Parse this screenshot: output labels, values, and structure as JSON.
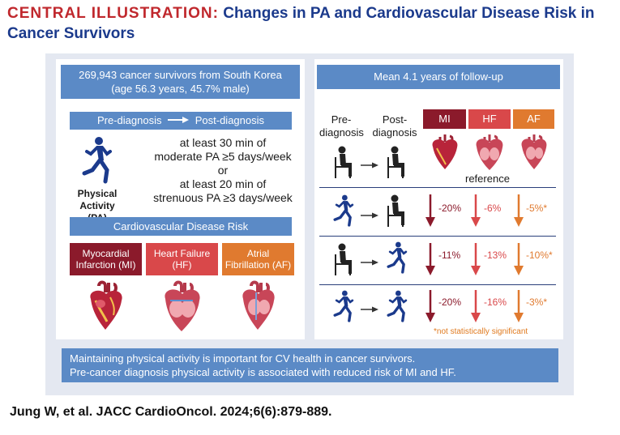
{
  "header": {
    "label": "CENTRAL ILLUSTRATION:",
    "title_line1": "Changes in PA and Cardiovascular Disease Risk in",
    "title_line2": "Cancer Survivors"
  },
  "left": {
    "cohort_line1": "269,943 cancer survivors from South Korea",
    "cohort_line2": "(age 56.3 years, 45.7% male)",
    "timeline_pre": "Pre-diagnosis",
    "timeline_post": "Post-diagnosis",
    "criteria": [
      "at least 30 min of",
      "moderate PA ≥5 days/week",
      "or",
      "at least 20 min of",
      "strenuous PA ≥3 days/week"
    ],
    "pa_label_line1": "Physical Activity",
    "pa_label_line2": "(PA)",
    "risk_header": "Cardiovascular Disease Risk",
    "diseases": [
      {
        "line1": "Myocardial",
        "line2": "Infarction (MI)",
        "color": "#8b1a2b"
      },
      {
        "line1": "Heart Failure",
        "line2": "(HF)",
        "color": "#d9484a"
      },
      {
        "line1": "Atrial",
        "line2": "Fibrillation (AF)",
        "color": "#e07a2f"
      }
    ]
  },
  "right": {
    "followup": "Mean 4.1 years of follow-up",
    "col_pre_line1": "Pre-",
    "col_pre_line2": "diagnosis",
    "col_post_line1": "Post-",
    "col_post_line2": "diagnosis",
    "outcomes": [
      {
        "label": "MI",
        "color": "#8b1a2b"
      },
      {
        "label": "HF",
        "color": "#d9484a"
      },
      {
        "label": "AF",
        "color": "#e07a2f"
      }
    ],
    "reference_label": "reference",
    "rows": [
      {
        "pre": "active",
        "post": "inactive",
        "values": [
          "-20%",
          "-6%",
          "-5%*"
        ]
      },
      {
        "pre": "inactive",
        "post": "active",
        "values": [
          "-11%",
          "-13%",
          "-10%*"
        ]
      },
      {
        "pre": "active",
        "post": "active",
        "values": [
          "-20%",
          "-16%",
          "-3%*"
        ]
      }
    ],
    "footnote": "*not statistically significant"
  },
  "summary": {
    "line1": "Maintaining physical activity is important for CV health in cancer survivors.",
    "line2": "Pre-cancer diagnosis physical activity is associated with reduced risk of MI and HF."
  },
  "citation": "Jung W, et al. JACC CardioOncol. 2024;6(6):879-889.",
  "colors": {
    "navy": "#1b3a8c",
    "title_red": "#c0282d",
    "box_blue": "#5b8ac6",
    "mi": "#8b1a2b",
    "hf": "#d9484a",
    "af": "#e07a2f"
  },
  "icons": [
    "running-person-icon",
    "seated-person-icon",
    "heart-icon",
    "arrow-right-icon",
    "arrow-down-icon"
  ]
}
